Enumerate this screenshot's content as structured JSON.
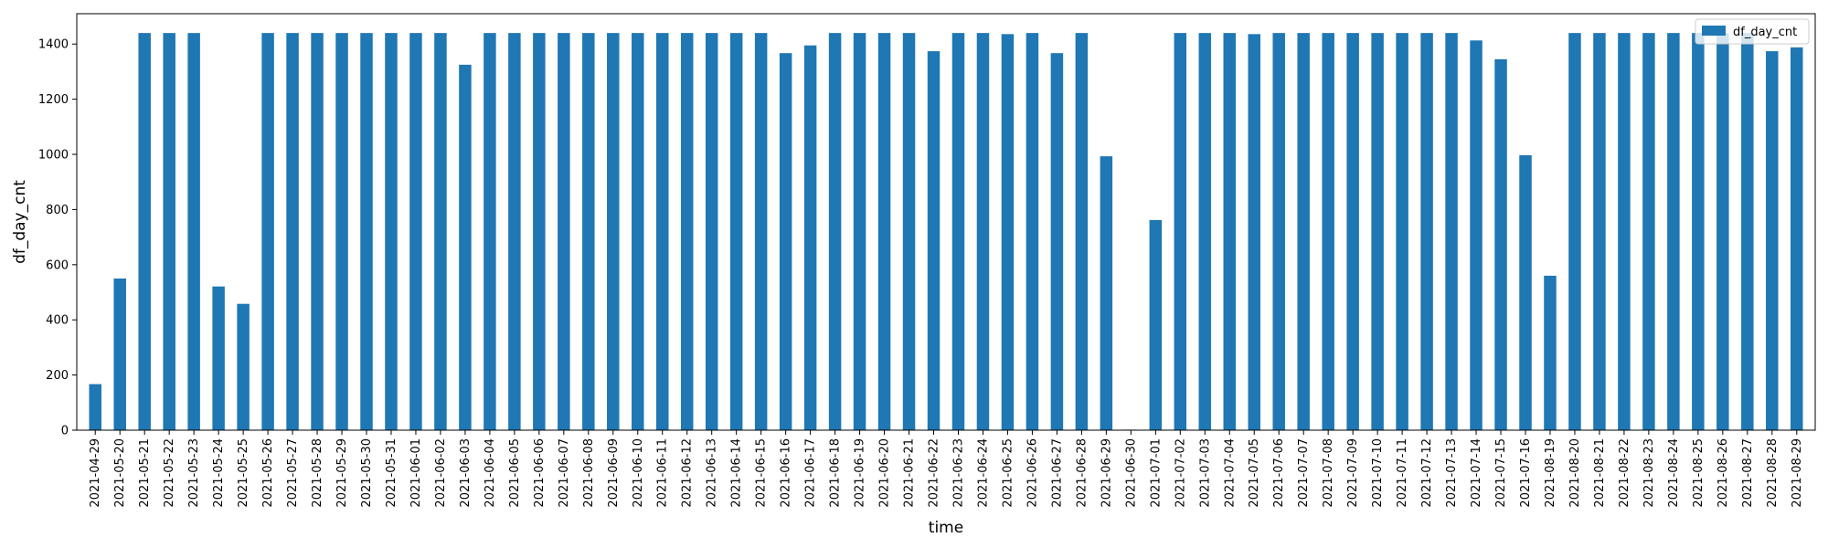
{
  "chart_data": {
    "type": "bar",
    "title": "",
    "xlabel": "time",
    "ylabel": "df_day_cnt",
    "ylim": [
      0,
      1510
    ],
    "yticks": [
      0,
      200,
      400,
      600,
      800,
      1000,
      1200,
      1400
    ],
    "grid": false,
    "legend_position": "top-right",
    "categories": [
      "2021-04-29",
      "2021-05-20",
      "2021-05-21",
      "2021-05-22",
      "2021-05-23",
      "2021-05-24",
      "2021-05-25",
      "2021-05-26",
      "2021-05-27",
      "2021-05-28",
      "2021-05-29",
      "2021-05-30",
      "2021-05-31",
      "2021-06-01",
      "2021-06-02",
      "2021-06-03",
      "2021-06-04",
      "2021-06-05",
      "2021-06-06",
      "2021-06-07",
      "2021-06-08",
      "2021-06-09",
      "2021-06-10",
      "2021-06-11",
      "2021-06-12",
      "2021-06-13",
      "2021-06-14",
      "2021-06-15",
      "2021-06-16",
      "2021-06-17",
      "2021-06-18",
      "2021-06-19",
      "2021-06-20",
      "2021-06-21",
      "2021-06-22",
      "2021-06-23",
      "2021-06-24",
      "2021-06-25",
      "2021-06-26",
      "2021-06-27",
      "2021-06-28",
      "2021-06-29",
      "2021-06-30",
      "2021-07-01",
      "2021-07-02",
      "2021-07-03",
      "2021-07-04",
      "2021-07-05",
      "2021-07-06",
      "2021-07-07",
      "2021-07-08",
      "2021-07-09",
      "2021-07-10",
      "2021-07-11",
      "2021-07-12",
      "2021-07-13",
      "2021-07-14",
      "2021-07-15",
      "2021-07-16",
      "2021-08-19",
      "2021-08-20",
      "2021-08-21",
      "2021-08-22",
      "2021-08-23",
      "2021-08-24",
      "2021-08-25",
      "2021-08-26",
      "2021-08-27",
      "2021-08-28",
      "2021-08-29"
    ],
    "series": [
      {
        "name": "df_day_cnt",
        "color": "#1f77b4",
        "values": [
          167,
          550,
          1440,
          1440,
          1440,
          521,
          458,
          1440,
          1440,
          1440,
          1440,
          1440,
          1440,
          1440,
          1440,
          1325,
          1440,
          1440,
          1440,
          1440,
          1440,
          1440,
          1440,
          1440,
          1440,
          1440,
          1440,
          1440,
          1367,
          1395,
          1440,
          1440,
          1440,
          1440,
          1374,
          1440,
          1440,
          1436,
          1440,
          1367,
          1440,
          993,
          2,
          762,
          1440,
          1440,
          1440,
          1436,
          1440,
          1440,
          1440,
          1440,
          1440,
          1440,
          1440,
          1440,
          1413,
          1345,
          997,
          560,
          1440,
          1440,
          1440,
          1440,
          1440,
          1440,
          1440,
          1440,
          1374,
          1388
        ]
      }
    ]
  }
}
